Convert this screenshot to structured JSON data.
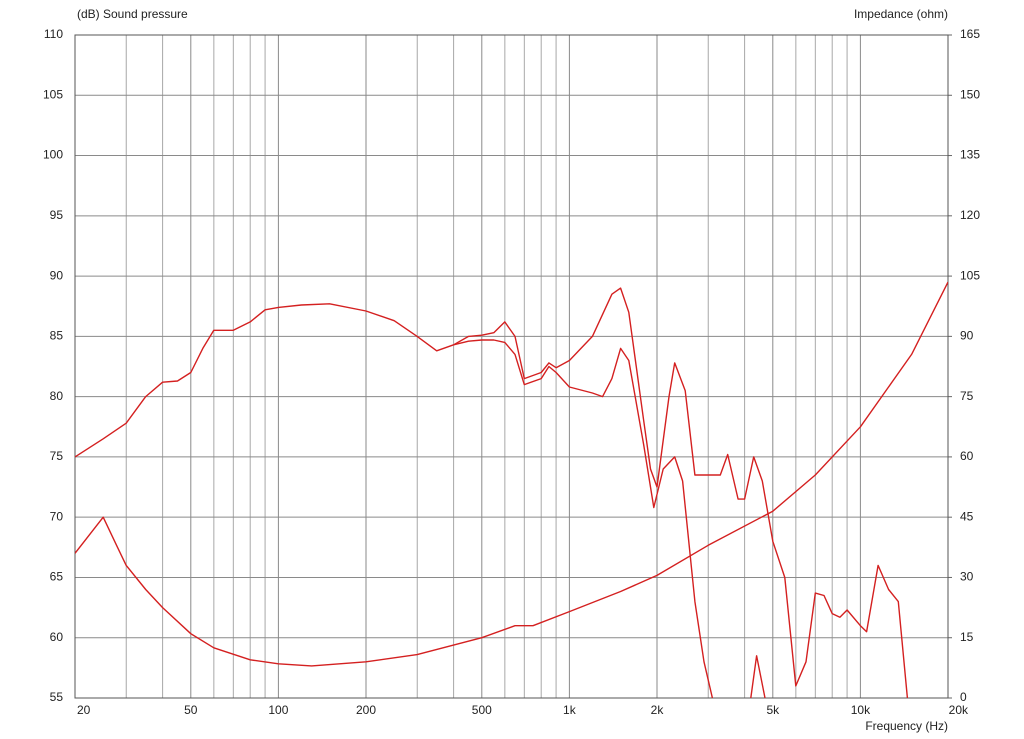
{
  "chart_data": {
    "type": "line",
    "y_label": "(dB)  Sound pressure",
    "y2_label": "Impedance  (ohm)",
    "x_label": "Frequency  (Hz)",
    "xscale": "log",
    "xlim": [
      20,
      20000
    ],
    "xticks": [
      20,
      50,
      100,
      200,
      500,
      {
        "value": 1000,
        "label": "1k"
      },
      {
        "value": 2000,
        "label": "2k"
      },
      {
        "value": 5000,
        "label": "5k"
      },
      {
        "value": 10000,
        "label": "10k"
      },
      {
        "value": 20000,
        "label": "20k"
      }
    ],
    "xminor": [
      30,
      40,
      60,
      70,
      80,
      90,
      300,
      400,
      600,
      700,
      800,
      900,
      3000,
      4000,
      6000,
      7000,
      8000,
      9000
    ],
    "ylim": [
      55,
      110
    ],
    "yticks": [
      55,
      60,
      65,
      70,
      75,
      80,
      85,
      90,
      95,
      100,
      105,
      110
    ],
    "y2lim": [
      0,
      165
    ],
    "y2ticks": [
      0,
      15,
      30,
      45,
      60,
      75,
      90,
      105,
      120,
      135,
      150,
      165
    ],
    "grid": true,
    "series": [
      {
        "color": "#d42020",
        "x": [
          20,
          25,
          30,
          35,
          40,
          45,
          50,
          55,
          60,
          70,
          80,
          90,
          100,
          120,
          150,
          200,
          250,
          300,
          350,
          400,
          450,
          500,
          550,
          600,
          650,
          700,
          800,
          850,
          900,
          1000,
          1200,
          1400,
          1500,
          1600,
          1800,
          1900,
          2000,
          2200,
          2300,
          2500,
          2700,
          3000,
          3300,
          3500,
          3800,
          4000,
          4300,
          4600,
          5000,
          5500,
          6000,
          6500,
          7000,
          7500,
          8000,
          8500,
          9000,
          10000,
          10500,
          11500,
          12500,
          13500,
          14500
        ],
        "values": [
          75,
          76.5,
          77.8,
          80,
          81.2,
          81.3,
          82,
          84,
          85.5,
          85.5,
          86.2,
          87.2,
          87.4,
          87.6,
          87.7,
          87.1,
          86.3,
          85,
          83.8,
          84.3,
          85,
          85.1,
          85.3,
          86.2,
          85,
          81.5,
          82,
          82.8,
          82.4,
          83,
          85,
          88.5,
          89,
          87,
          78,
          74,
          72.5,
          80,
          82.8,
          80.5,
          73.5,
          73.5,
          73.5,
          75.2,
          71.5,
          71.5,
          75,
          73,
          68,
          65,
          56,
          58,
          63.7,
          63.5,
          62,
          61.7,
          62.3,
          61,
          60.5,
          66,
          64,
          63,
          55
        ]
      },
      {
        "color": "#d42020",
        "x": [
          400,
          450,
          500,
          550,
          600,
          650,
          700,
          800,
          850,
          900,
          1000,
          1200,
          1300,
          1400,
          1500,
          1600,
          1800,
          1950,
          2100,
          2300,
          2450,
          2700,
          2900,
          3100,
          3600,
          4200,
          4400,
          4700
        ],
        "values": [
          84.3,
          84.6,
          84.7,
          84.7,
          84.5,
          83.5,
          81,
          81.5,
          82.5,
          82,
          80.8,
          80.3,
          80,
          81.5,
          84,
          83,
          76,
          70.8,
          74,
          75,
          73,
          63,
          58,
          55,
          null,
          55,
          58.5,
          55
        ]
      },
      {
        "color": "#d42020",
        "axis": "y2",
        "x": [
          20,
          25,
          28,
          30,
          35,
          40,
          50,
          60,
          80,
          100,
          130,
          200,
          300,
          500,
          650,
          750,
          1000,
          1500,
          2000,
          3000,
          5000,
          7000,
          10000,
          15000,
          20000
        ],
        "values": [
          36,
          45,
          37.5,
          33,
          27,
          22.5,
          16,
          12.5,
          9.5,
          8.5,
          8,
          9,
          10.8,
          15,
          18,
          18,
          21.5,
          26.5,
          30.5,
          38,
          46.5,
          55.5,
          67.5,
          85.5,
          103.5
        ]
      }
    ]
  }
}
